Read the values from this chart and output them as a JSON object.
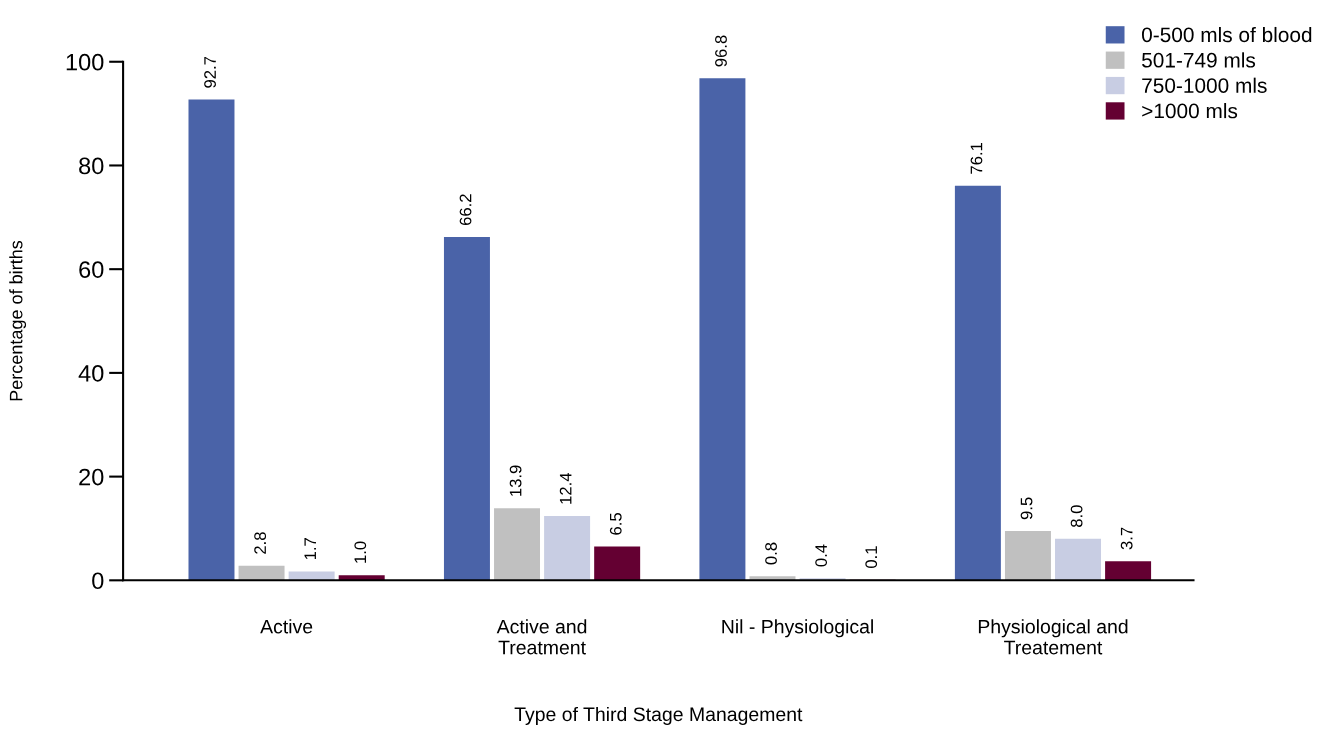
{
  "chart_data": {
    "type": "bar",
    "xlabel": "Type of Third Stage Management",
    "ylabel": "Percentage of births",
    "categories": [
      "Active",
      "Active and\nTreatment",
      "Nil - Physiological",
      "Physiological and\nTreatement"
    ],
    "series": [
      {
        "name": "0-500 mls of blood",
        "color": "#4a63a8",
        "values": [
          92.7,
          66.2,
          96.8,
          76.1
        ],
        "value_labels": [
          "92.7",
          "66.2",
          "96.8",
          "76.1"
        ]
      },
      {
        "name": "501-749 mls",
        "color": "#c0c0c0",
        "values": [
          2.8,
          13.9,
          0.8,
          9.5
        ],
        "value_labels": [
          "2.8",
          "13.9",
          "0.8",
          "9.5"
        ]
      },
      {
        "name": "750-1000 mls",
        "color": "#c8cde3",
        "values": [
          1.7,
          12.4,
          0.4,
          8.0
        ],
        "value_labels": [
          "1.7",
          "12.4",
          "0.4",
          "8.0"
        ]
      },
      {
        "name": ">1000 mls",
        "color": "#640032",
        "values": [
          1.0,
          6.5,
          0.1,
          3.7
        ],
        "value_labels": [
          "1.0",
          "6.5",
          "0.1",
          "3.7"
        ]
      }
    ],
    "ylim": [
      0,
      100
    ],
    "yticks": [
      0,
      20,
      40,
      60,
      80,
      100
    ],
    "grid": false,
    "legend": "top right"
  }
}
